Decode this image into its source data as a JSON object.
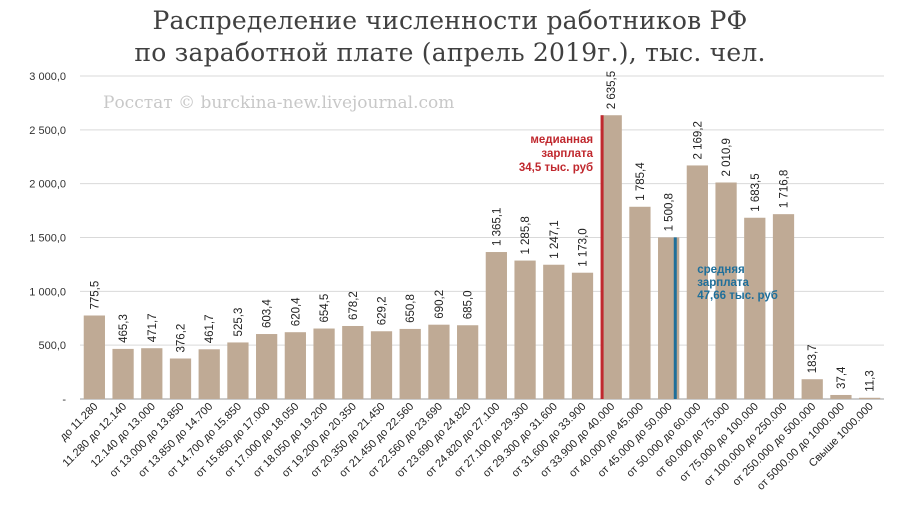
{
  "chart_data": {
    "type": "bar",
    "title_lines": [
      "Распределение численности работников РФ",
      "по заработной плате (апрель 2019г.), тыс. чел."
    ],
    "watermark": "Росстат © burckina-new.livejournal.com",
    "categories": [
      "до 11.280",
      "11.280 до 12.140",
      "12.140 до 13.000",
      "от 13.000 до 13.850",
      "от 13.850 до 14.700",
      "от 14.700 до 15.850",
      "от 15.850 до 17.000",
      "от 17.000 до 18.050",
      "от 18.050 до 19.200",
      "от 19.200 до 20.350",
      "от 20.350 до 21.450",
      "от 21.450 до 22.560",
      "от 22.560 до 23.690",
      "от 23.690 до 24.820",
      "от 24.820 до 27.100",
      "от 27.100 до 29.300",
      "от 29.300 до 31.600",
      "от 31.600 до 33.900",
      "от 33.900 до 40.000",
      "от 40.000 до 45.000",
      "от 45.000 до 50.000",
      "от 50.000 до 60.000",
      "от 60.000 до 75.000",
      "от 75.000 до 100.000",
      "от 100.000 до 250.000",
      "от 250.000 до 500.000",
      "от 5000.00 до 1000.000",
      "Свыше 1000.000"
    ],
    "values": [
      775.5,
      465.3,
      471.7,
      376.2,
      461.7,
      525.3,
      603.4,
      620.4,
      654.5,
      678.2,
      629.2,
      650.8,
      690.2,
      685.0,
      1365.1,
      1285.8,
      1247.1,
      1173.0,
      2635.5,
      1785.4,
      1500.8,
      2169.2,
      2010.9,
      1683.5,
      1716.8,
      183.7,
      37.4,
      11.3
    ],
    "value_labels": [
      "775,5",
      "465,3",
      "471,7",
      "376,2",
      "461,7",
      "525,3",
      "603,4",
      "620,4",
      "654,5",
      "678,2",
      "629,2",
      "650,8",
      "690,2",
      "685,0",
      "1 365,1",
      "1 285,8",
      "1 247,1",
      "1 173,0",
      "2 635,5",
      "1 785,4",
      "1 500,8",
      "2 169,2",
      "2 010,9",
      "1 683,5",
      "1 716,8",
      "183,7",
      "37,4",
      "11,3"
    ],
    "ylim": [
      0,
      3000
    ],
    "yticks": [
      0,
      500,
      1000,
      1500,
      2000,
      2500,
      3000
    ],
    "ytick_labels": [
      "-",
      "500,0",
      "1 000,0",
      "1 500,0",
      "2 000,0",
      "2 500,0",
      "3 000,0"
    ],
    "grid": true,
    "bar_color": "#bfaa95",
    "annotations": {
      "median": {
        "lines": [
          "медианная",
          "зарплата",
          "34,5 тыс. руб"
        ],
        "color": "#c0282e",
        "marker_category_index": 18,
        "value": 34.5
      },
      "mean": {
        "lines": [
          "средняя",
          "зарплата",
          "47,66 тыс. руб"
        ],
        "color": "#1f6f9a",
        "marker_category_index": 20,
        "value": 47.66
      }
    }
  }
}
